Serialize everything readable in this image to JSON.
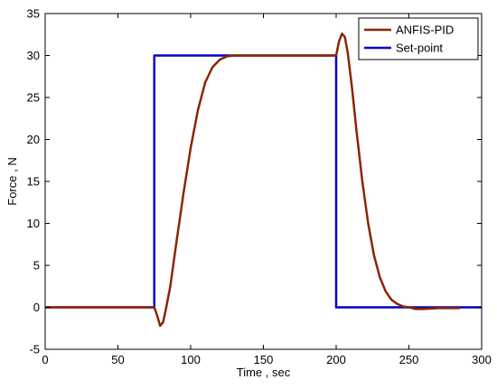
{
  "chart_data": {
    "type": "line",
    "title": "",
    "xlabel": "Time , sec",
    "ylabel": "Force , N",
    "xlim": [
      0,
      300
    ],
    "ylim": [
      -5,
      35
    ],
    "xticks": [
      "0",
      "50",
      "100",
      "150",
      "200",
      "250",
      "300"
    ],
    "yticks": [
      "-5",
      "0",
      "5",
      "10",
      "15",
      "20",
      "25",
      "30",
      "35"
    ],
    "grid": false,
    "legend_position": "top-right",
    "series": [
      {
        "name": "ANFIS-PID",
        "color": "#8B2500",
        "x": [
          0,
          75,
          77,
          79,
          81,
          83,
          86,
          90,
          95,
          100,
          105,
          110,
          115,
          120,
          125,
          130,
          140,
          150,
          160,
          170,
          180,
          190,
          200,
          202,
          204,
          206,
          208,
          211,
          214,
          218,
          222,
          226,
          230,
          234,
          238,
          242,
          246,
          250,
          255,
          260,
          270,
          280,
          285
        ],
        "y": [
          0,
          0,
          -1.0,
          -2.2,
          -1.8,
          -0.2,
          2.5,
          7.5,
          13.5,
          19,
          23.5,
          26.8,
          28.6,
          29.5,
          29.9,
          30,
          30,
          30,
          30,
          30,
          30,
          30,
          30,
          31.7,
          32.6,
          32.2,
          30.3,
          26,
          21,
          15,
          10,
          6.2,
          3.6,
          1.9,
          0.9,
          0.4,
          0.1,
          0,
          -0.2,
          -0.2,
          -0.1,
          -0.1,
          -0.1
        ]
      },
      {
        "name": "Set-point",
        "color": "#0000CC",
        "x": [
          0,
          75,
          75,
          200,
          200,
          300
        ],
        "y": [
          0,
          0,
          30,
          30,
          0,
          0
        ]
      }
    ]
  }
}
